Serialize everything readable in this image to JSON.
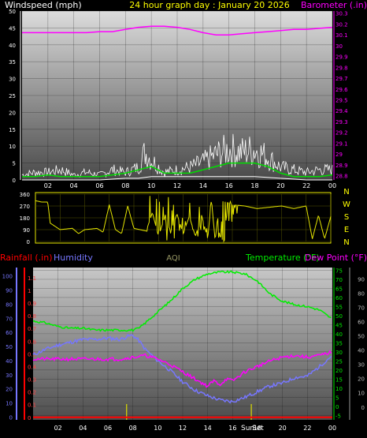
{
  "header": {
    "title": "24 hour graph day : January 20 2026",
    "windspeed_label": "Windspeed (mph)",
    "barometer_label": "Barometer (.in)"
  },
  "bottom_header": {
    "rainfall_label": "Rainfall (.in)",
    "humidity_label": "Humidity",
    "aqi_label": "AQI",
    "temperature_label": "Temperature (°F)",
    "dewpoint_label": "Dew Point (°F)"
  },
  "x_ticks": [
    "02",
    "04",
    "06",
    "08",
    "10",
    "12",
    "14",
    "16",
    "18",
    "20",
    "22",
    "00"
  ],
  "annotations": {
    "sunrise": "Sun",
    "sunset": "Set"
  },
  "colors": {
    "windspeed": "#ffffff",
    "wind_avg": "#00dd00",
    "barometer": "#ff00ff",
    "direction": "#e6e600",
    "temperature": "#00ee00",
    "dewpoint": "#ff00ff",
    "humidity": "#7777ff",
    "rainfall": "#ff0000",
    "title": "#ffff00"
  },
  "chart_data": [
    {
      "type": "line",
      "panel": "top",
      "x_range": [
        0,
        24
      ],
      "left_axis": {
        "ticks": [
          "0",
          "5",
          "10",
          "15",
          "20",
          "25",
          "30",
          "35",
          "40",
          "45",
          "50"
        ],
        "ylim": [
          0,
          50
        ]
      },
      "right_axis": {
        "ticks": [
          "28.8",
          "28.9",
          "29",
          "29.1",
          "29.2",
          "29.3",
          "29.4",
          "29.5",
          "29.6",
          "29.7",
          "29.8",
          "29.9",
          "30",
          "30.1",
          "30.2",
          "30.3"
        ],
        "ylim": [
          28.76,
          30.32
        ]
      },
      "series": [
        {
          "key": "barometer",
          "axis": "right",
          "x": [
            0,
            1,
            2,
            3,
            4,
            5,
            6,
            7,
            8,
            9,
            10,
            11,
            12,
            13,
            14,
            15,
            16,
            17,
            18,
            19,
            20,
            21,
            22,
            23,
            24
          ],
          "values": [
            30.12,
            30.12,
            30.12,
            30.12,
            30.12,
            30.12,
            30.13,
            30.13,
            30.15,
            30.17,
            30.18,
            30.18,
            30.17,
            30.15,
            30.12,
            30.1,
            30.1,
            30.11,
            30.12,
            30.13,
            30.14,
            30.15,
            30.15,
            30.16,
            30.17
          ]
        },
        {
          "key": "gust",
          "axis": "left",
          "x": [
            0,
            1,
            2,
            3,
            4,
            5,
            6,
            7,
            8,
            9,
            9.5,
            10,
            11,
            12,
            13,
            14,
            15,
            16,
            17,
            18,
            19,
            20,
            21,
            22,
            23,
            24
          ],
          "values": [
            2,
            3,
            3,
            4,
            2,
            3,
            2,
            4,
            3,
            5,
            11,
            8,
            3,
            4,
            5,
            7,
            10,
            12,
            11,
            12,
            9,
            5,
            4,
            3,
            4,
            4
          ]
        },
        {
          "key": "wind_avg",
          "axis": "left",
          "x": [
            0,
            1,
            2,
            3,
            4,
            5,
            6,
            7,
            8,
            9,
            10,
            11,
            12,
            13,
            14,
            15,
            16,
            17,
            18,
            19,
            20,
            21,
            22,
            23,
            24
          ],
          "values": [
            1,
            1,
            1.5,
            1,
            1,
            1,
            1,
            1.5,
            2,
            3,
            4,
            2,
            2,
            2,
            3,
            4,
            5,
            5,
            5,
            4,
            2,
            1,
            1,
            1,
            1.5
          ]
        },
        {
          "key": "wind_min",
          "axis": "left",
          "x": [
            0,
            2,
            4,
            6,
            8,
            9,
            10,
            12,
            14,
            16,
            18,
            20,
            22,
            24
          ],
          "values": [
            0,
            0,
            0,
            0,
            0.5,
            0.5,
            1,
            1,
            1,
            1,
            1,
            0.5,
            0,
            0
          ]
        }
      ]
    },
    {
      "type": "line",
      "panel": "direction",
      "x_range": [
        0,
        24
      ],
      "left_axis": {
        "ticks": [
          "0",
          "90",
          "180",
          "270",
          "360"
        ],
        "ylim": [
          0,
          360
        ]
      },
      "right_axis": {
        "ticks": [
          "N",
          "W",
          "S",
          "E",
          "N"
        ]
      },
      "series": [
        {
          "key": "direction",
          "x": [
            0,
            0.5,
            1,
            1.2,
            2,
            3,
            3.5,
            4,
            5,
            5.5,
            6,
            6.5,
            7,
            7.5,
            8,
            8.5,
            9,
            9.5,
            10,
            10.5,
            11,
            11.5,
            12,
            12.5,
            13,
            13.5,
            14,
            14.3,
            14.6,
            15,
            15.5,
            16,
            17,
            18,
            19,
            20,
            21,
            22,
            22.5,
            23,
            23.5,
            24
          ],
          "values": [
            310,
            300,
            300,
            140,
            90,
            100,
            60,
            90,
            100,
            70,
            280,
            90,
            60,
            270,
            100,
            90,
            80,
            220,
            40,
            180,
            80,
            210,
            60,
            190,
            40,
            200,
            20,
            320,
            10,
            310,
            300,
            280,
            270,
            250,
            260,
            270,
            250,
            270,
            20,
            200,
            20,
            190
          ]
        }
      ]
    },
    {
      "type": "line",
      "panel": "bottom",
      "x_range": [
        0,
        24
      ],
      "humidity_axis": {
        "ticks": [
          "0",
          "10",
          "20",
          "30",
          "40",
          "50",
          "60",
          "70",
          "80",
          "90",
          "100"
        ],
        "ylim": [
          -2,
          106
        ]
      },
      "rain_axis": {
        "ticks": [
          "0",
          "0.1",
          "0.2",
          "0.3",
          "0.4",
          "0.5",
          "0.6",
          "0.7",
          "0.8",
          "0.9",
          "1",
          "1.1"
        ],
        "ylim": [
          -0.02,
          1.18
        ]
      },
      "temp_axis": {
        "ticks": [
          "-5",
          "0",
          "5",
          "10",
          "15",
          "20",
          "25",
          "30",
          "35",
          "40",
          "45",
          "50",
          "55",
          "60",
          "65",
          "70",
          "75"
        ],
        "ylim": [
          -7.5,
          76.5
        ]
      },
      "rh_axis": {
        "ticks": [
          "0",
          "10",
          "20",
          "30",
          "40",
          "50",
          "60",
          "70",
          "80",
          "90"
        ],
        "ylim": [
          -9,
          98
        ]
      },
      "series": [
        {
          "key": "temperature",
          "axis": "temp",
          "x": [
            0,
            1,
            2,
            3,
            4,
            5,
            6,
            7,
            8,
            8.5,
            9,
            10,
            11,
            12,
            13,
            14,
            15,
            16,
            17,
            18,
            19,
            20,
            21,
            22,
            23,
            24
          ],
          "values": [
            47,
            46,
            44,
            43,
            43,
            42,
            42,
            42,
            42,
            43,
            46,
            52,
            58,
            65,
            70,
            73,
            74,
            74,
            73,
            69,
            62,
            58,
            56,
            55,
            53,
            48
          ]
        },
        {
          "key": "dewpoint",
          "axis": "temp",
          "x": [
            0,
            1,
            2,
            3,
            4,
            5,
            6,
            7,
            8,
            9,
            10,
            11,
            12,
            13,
            14,
            14.5,
            15,
            15.5,
            16,
            17,
            18,
            19,
            20,
            21,
            22,
            23,
            24
          ],
          "values": [
            26,
            26,
            26,
            26,
            26,
            26,
            26,
            26,
            27,
            28,
            26,
            23,
            19,
            15,
            11,
            14,
            12,
            15,
            14,
            19,
            22,
            25,
            27,
            28,
            27,
            28,
            30
          ]
        },
        {
          "key": "humidity",
          "axis": "humidity",
          "x": [
            0,
            1,
            2,
            3,
            4,
            5,
            6,
            7,
            7.5,
            8,
            8.5,
            9,
            10,
            11,
            12,
            13,
            14,
            15,
            16,
            17,
            18,
            19,
            20,
            21,
            22,
            23,
            24
          ],
          "values": [
            44,
            48,
            51,
            53,
            55,
            55,
            56,
            55,
            57,
            58,
            54,
            48,
            40,
            33,
            25,
            19,
            15,
            12,
            11,
            14,
            18,
            22,
            24,
            28,
            29,
            36,
            44
          ]
        },
        {
          "key": "rainfall",
          "axis": "rain",
          "x": [
            0,
            24
          ],
          "values": [
            0,
            0
          ]
        }
      ]
    }
  ]
}
